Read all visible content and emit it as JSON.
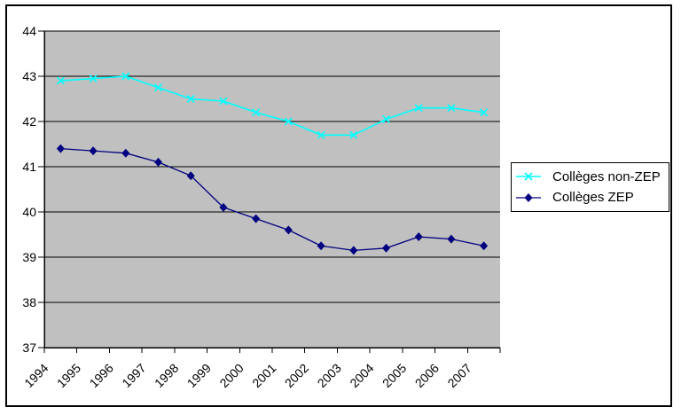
{
  "chart_data": {
    "type": "line",
    "categories": [
      "1994",
      "1995",
      "1996",
      "1997",
      "1998",
      "1999",
      "2000",
      "2001",
      "2002",
      "2003",
      "2004",
      "2005",
      "2006",
      "2007"
    ],
    "series": [
      {
        "name": "Collèges non-ZEP",
        "color": "#00FFFF",
        "marker": "x",
        "values": [
          42.9,
          42.95,
          43.0,
          42.75,
          42.5,
          42.45,
          42.2,
          42.0,
          41.7,
          41.7,
          42.05,
          42.3,
          42.3,
          42.2
        ]
      },
      {
        "name": "Collèges ZEP",
        "color": "#000080",
        "marker": "diamond",
        "values": [
          41.4,
          41.35,
          41.3,
          41.1,
          40.8,
          40.1,
          39.85,
          39.6,
          39.25,
          39.15,
          39.2,
          39.45,
          39.4,
          39.25
        ]
      }
    ],
    "xlabel": "",
    "ylabel": "",
    "ylim": [
      37,
      44
    ],
    "y_ticks": [
      37,
      38,
      39,
      40,
      41,
      42,
      43,
      44
    ],
    "x_tick_label_rotation": 45,
    "grid": "horizontal",
    "legend_position": "middle-right",
    "plot_bg_color": "#C0C0C0",
    "gridline_color": "#000000",
    "axis_color": "#000000",
    "axis_text_color": "#000000",
    "outer_border_color": "#000000",
    "background_color": "#FFFFFF"
  }
}
